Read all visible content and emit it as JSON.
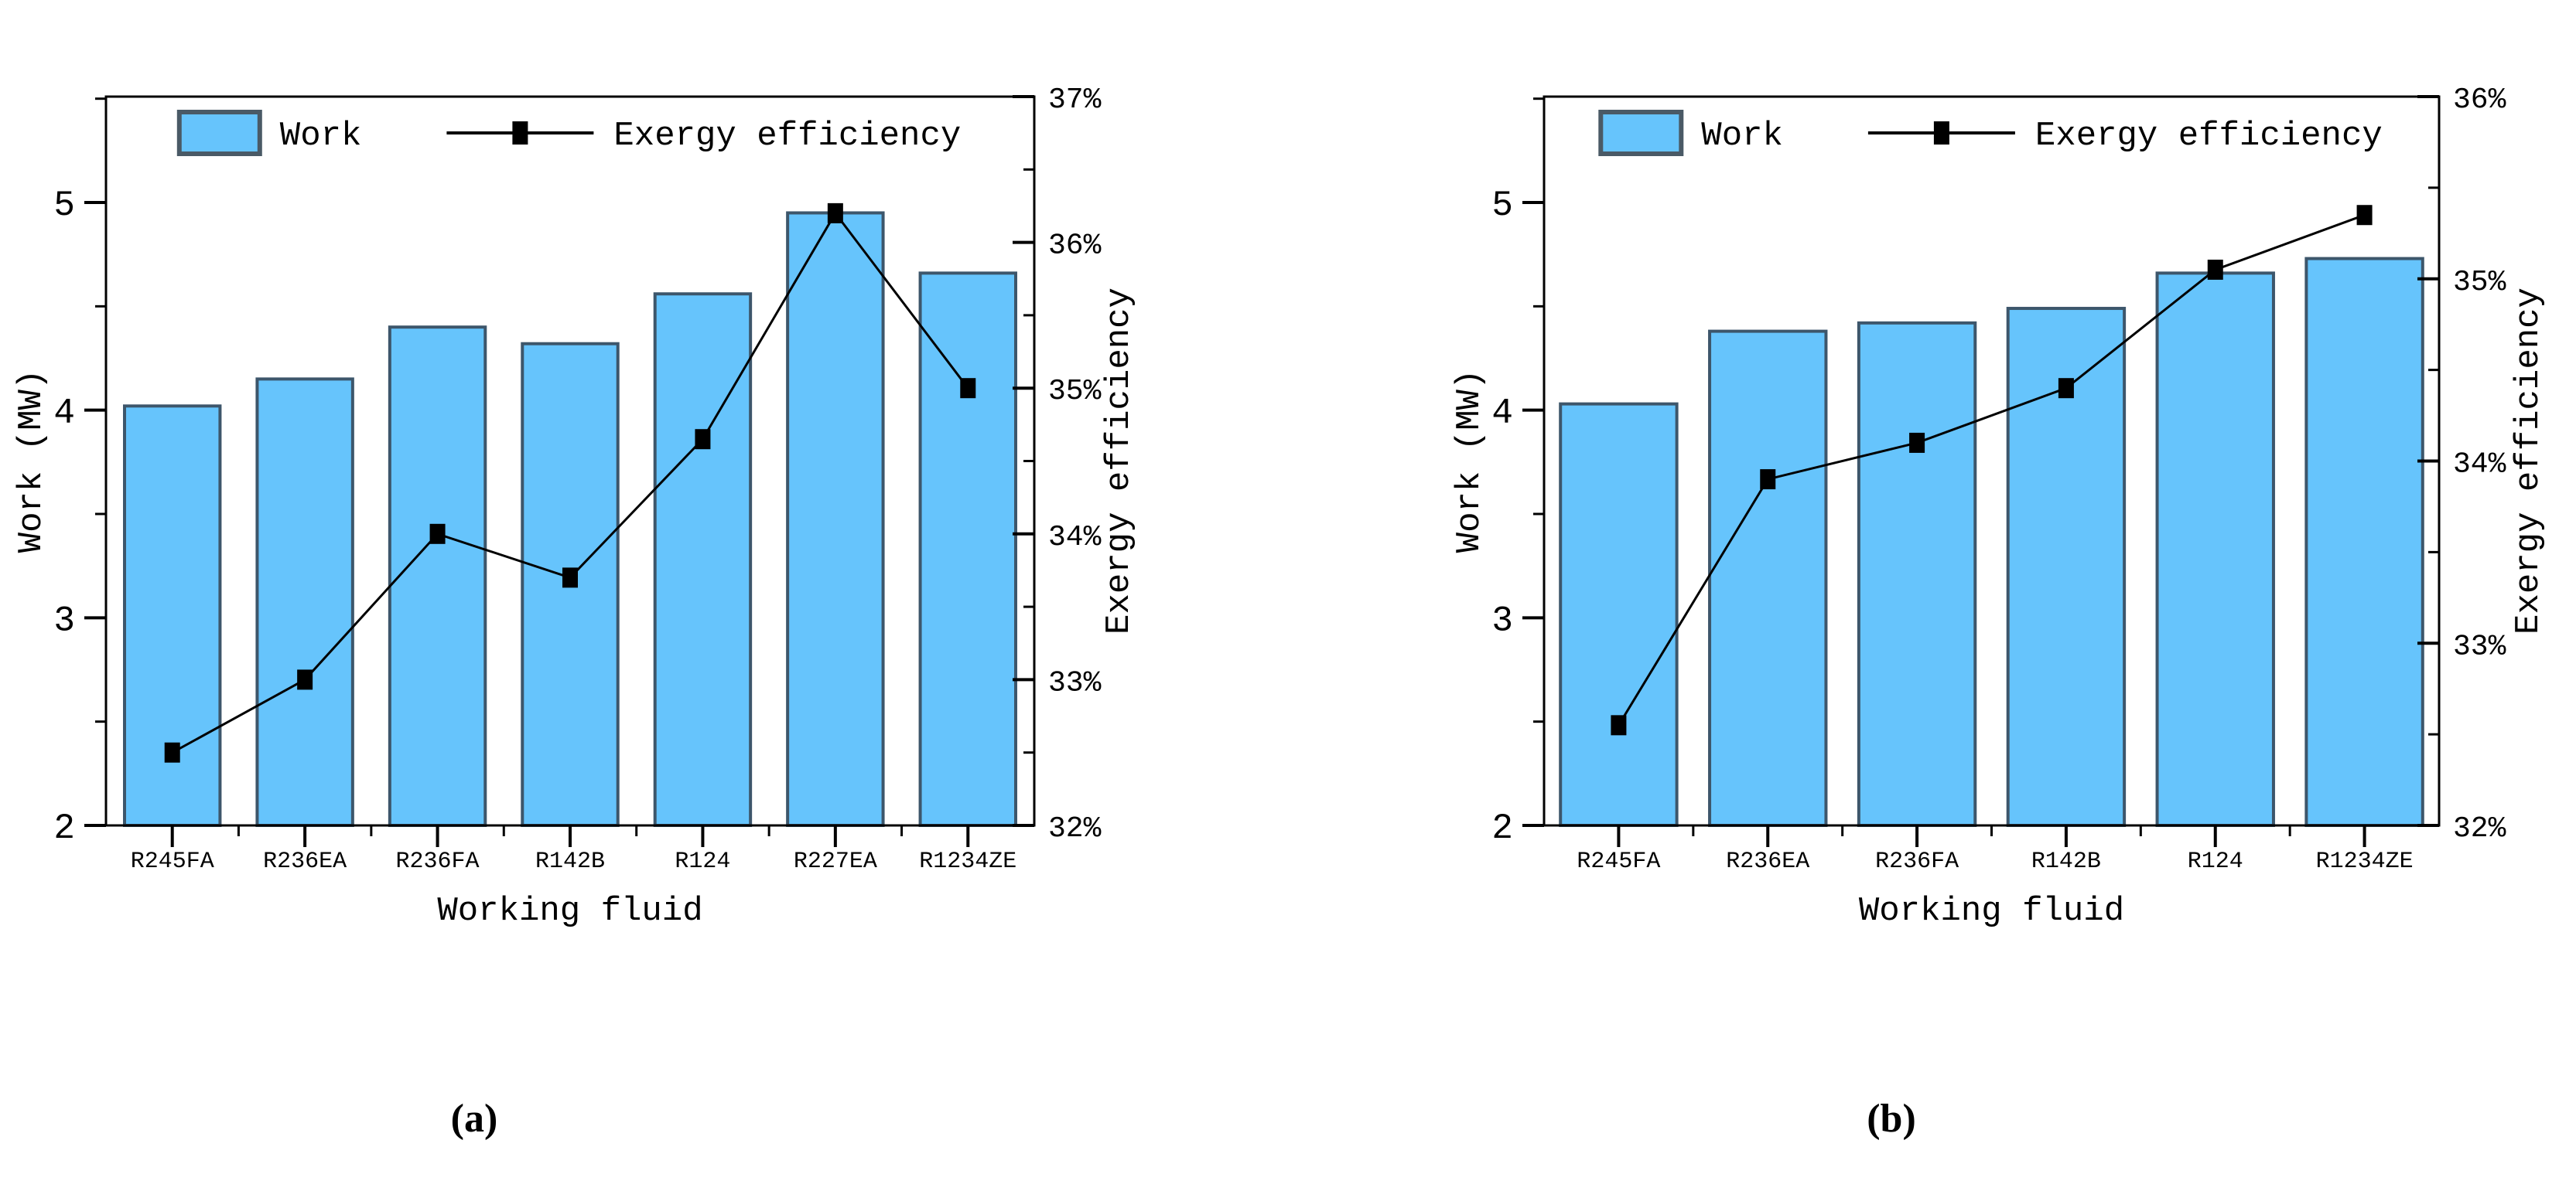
{
  "figure": {
    "captions": {
      "a": "(a)",
      "b": "(b)"
    }
  },
  "chart_data": [
    {
      "id": "a",
      "type": "bar+line",
      "caption": "(a)",
      "categories": [
        "R245FA",
        "R236EA",
        "R236FA",
        "R142B",
        "R124",
        "R227EA",
        "R1234ZE"
      ],
      "series": [
        {
          "name": "Work",
          "kind": "bar",
          "axis": "left",
          "values": [
            4.02,
            4.15,
            4.4,
            4.32,
            4.56,
            4.95,
            4.66
          ]
        },
        {
          "name": "Exergy efficiency",
          "kind": "line",
          "axis": "right",
          "values": [
            32.5,
            33.0,
            34.0,
            33.7,
            34.65,
            36.2,
            35.0
          ]
        }
      ],
      "xlabel": "Working fluid",
      "ylabel_left": "Work (MW)",
      "ylabel_right": "Exergy efficiency",
      "ylim_left": [
        2,
        5.51
      ],
      "ylim_right": [
        32,
        37
      ],
      "yticks_left": [
        {
          "v": 2,
          "label": "2"
        },
        {
          "v": 3,
          "label": "3"
        },
        {
          "v": 4,
          "label": "4"
        },
        {
          "v": 5,
          "label": "5"
        }
      ],
      "yticks_right": [
        {
          "v": 32,
          "label": "32%"
        },
        {
          "v": 33,
          "label": "33%"
        },
        {
          "v": 34,
          "label": "34%"
        },
        {
          "v": 35,
          "label": "35%"
        },
        {
          "v": 36,
          "label": "36%"
        },
        {
          "v": 37,
          "label": "37%"
        }
      ],
      "minor_step": 0.5,
      "grid": false,
      "legend": {
        "position": "top-center-inside",
        "bar_label": "Work",
        "line_label": "Exergy efficiency"
      },
      "colors": {
        "bar_fill": "#66C4FC",
        "bar_stroke": "#3D566B",
        "line": "#000000",
        "marker": "#000000"
      }
    },
    {
      "id": "b",
      "type": "bar+line",
      "caption": "(b)",
      "categories": [
        "R245FA",
        "R236EA",
        "R236FA",
        "R142B",
        "R124",
        "R1234ZE"
      ],
      "series": [
        {
          "name": "Work",
          "kind": "bar",
          "axis": "left",
          "values": [
            4.03,
            4.38,
            4.42,
            4.49,
            4.66,
            4.73
          ]
        },
        {
          "name": "Exergy efficiency",
          "kind": "line",
          "axis": "right",
          "values": [
            32.55,
            33.9,
            34.1,
            34.4,
            35.05,
            35.35
          ]
        }
      ],
      "xlabel": "Working fluid",
      "ylabel_left": "Work (MW)",
      "ylabel_right": "Exergy efficiency",
      "ylim_left": [
        2,
        5.51
      ],
      "ylim_right": [
        32,
        36
      ],
      "yticks_left": [
        {
          "v": 2,
          "label": "2"
        },
        {
          "v": 3,
          "label": "3"
        },
        {
          "v": 4,
          "label": "4"
        },
        {
          "v": 5,
          "label": "5"
        }
      ],
      "yticks_right": [
        {
          "v": 32,
          "label": "32%"
        },
        {
          "v": 33,
          "label": "33%"
        },
        {
          "v": 34,
          "label": "34%"
        },
        {
          "v": 35,
          "label": "35%"
        },
        {
          "v": 36,
          "label": "36%"
        }
      ],
      "minor_step": 0.5,
      "grid": false,
      "legend": {
        "position": "top-center-inside",
        "bar_label": "Work",
        "line_label": "Exergy efficiency"
      },
      "colors": {
        "bar_fill": "#66C4FC",
        "bar_stroke": "#3D566B",
        "line": "#000000",
        "marker": "#000000"
      }
    }
  ]
}
